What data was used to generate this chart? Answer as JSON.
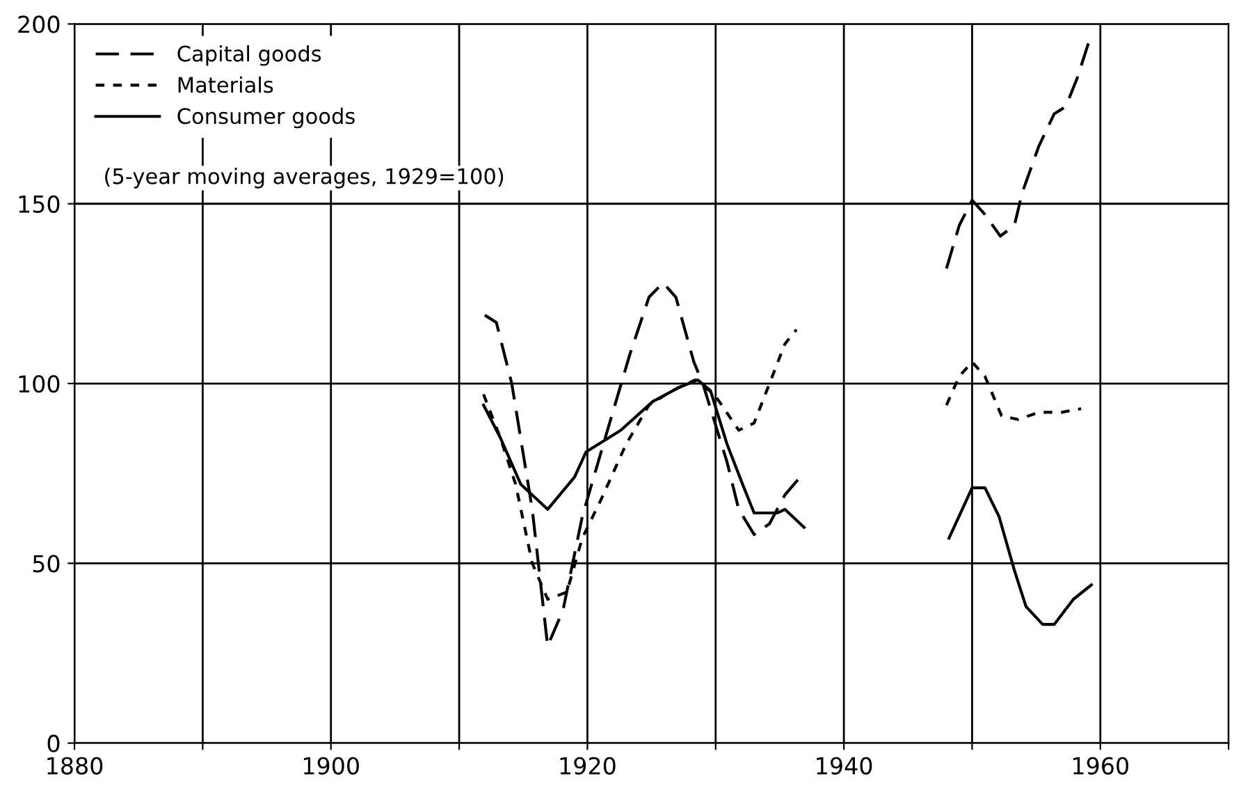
{
  "chart_data": {
    "type": "line",
    "xlim": [
      1880,
      1970
    ],
    "ylim": [
      0,
      200
    ],
    "xticks": [
      1880,
      {
        "value": 1890,
        "label": null
      },
      1900,
      {
        "value": 1910,
        "label": null
      },
      1920,
      {
        "value": 1930,
        "label": null
      },
      1940,
      {
        "value": 1950,
        "label": null
      },
      1960,
      {
        "value": 1970,
        "label": null
      }
    ],
    "yticks": [
      0,
      50,
      100,
      150,
      200
    ],
    "grid": true,
    "legend": "top left",
    "marker": "none",
    "annotations": [
      "(5-year moving averages, 1929=100)"
    ],
    "series": [
      {
        "name": "Capital goods",
        "color": "#000000",
        "line_style": "dashed",
        "x": [
          1912.0,
          1912.9,
          1914.1,
          1915.7,
          1916.9,
          1918.1,
          1919.6,
          1921.4,
          1923.3,
          1924.8,
          1925.9,
          1926.9,
          1928.3,
          1929.0,
          1930.9,
          1931.8,
          1933.0,
          1934.2,
          1935.4,
          1936.6,
          1942,
          1948.0,
          1949.0,
          1950.0,
          1951.0,
          1952.2,
          1953.3,
          1953.9,
          1955.2,
          1956.4,
          1957.3,
          1958.2,
          1959.1
        ],
        "values": [
          119,
          117,
          100,
          65,
          27,
          37,
          63,
          85,
          108,
          124,
          128,
          124,
          106,
          100,
          78,
          65,
          58,
          61,
          69,
          74,
          null,
          132,
          144,
          151,
          147,
          141,
          144,
          153,
          166,
          175,
          177,
          185,
          195
        ]
      },
      {
        "name": "Materials",
        "color": "#000000",
        "line_style": "dotted",
        "x": [
          1911.9,
          1913.2,
          1914.4,
          1915.7,
          1916.9,
          1918.4,
          1919.6,
          1921.1,
          1923.0,
          1924.8,
          1926.6,
          1928.4,
          1929.9,
          1931.8,
          1933.0,
          1934.2,
          1935.4,
          1936.3,
          1942,
          1948.0,
          1949.0,
          1950.0,
          1951.0,
          1952.3,
          1953.6,
          1955.2,
          1957.0,
          1958.5
        ],
        "values": [
          97,
          85,
          72,
          50,
          40,
          42,
          57,
          68,
          83,
          94,
          98,
          101,
          97,
          87,
          89,
          100,
          111,
          115,
          null,
          94,
          102,
          106,
          102,
          91,
          90,
          92,
          92,
          93
        ]
      },
      {
        "name": "Consumer goods",
        "color": "#000000",
        "line_style": "solid",
        "x": [
          1911.9,
          1913.2,
          1914.8,
          1916.9,
          1919.0,
          1919.9,
          1922.6,
          1925.1,
          1927.2,
          1928.6,
          1929.6,
          1930.9,
          1932.1,
          1933.0,
          1934.8,
          1935.4,
          1936.9,
          1942,
          1948.2,
          1950.0,
          1951.0,
          1952.1,
          1953.3,
          1954.2,
          1955.5,
          1956.4,
          1957.9,
          1959.3
        ],
        "values": [
          94,
          85,
          72,
          65,
          74,
          81,
          87,
          95,
          99,
          101,
          98,
          83,
          72,
          64,
          64,
          65,
          60,
          null,
          57,
          71,
          71,
          63,
          48,
          38,
          33,
          33,
          40,
          44
        ]
      }
    ]
  }
}
